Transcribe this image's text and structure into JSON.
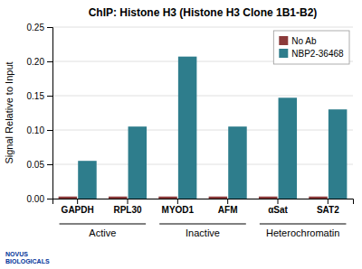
{
  "chart_data": {
    "type": "bar",
    "title": "ChIP: Histone H3 (Histone H3 Clone 1B1-B2)",
    "ylabel": "Signal Relative to Input",
    "categories": [
      "GAPDH",
      "RPL30",
      "MYOD1",
      "AFM",
      "αSat",
      "SAT2"
    ],
    "series": [
      {
        "name": "No Ab",
        "color": "#8B3A3A",
        "values": [
          0.003,
          0.003,
          0.003,
          0.003,
          0.003,
          0.003
        ]
      },
      {
        "name": "NBP2-36468",
        "color": "#2E7D8C",
        "values": [
          0.055,
          0.105,
          0.207,
          0.105,
          0.147,
          0.13
        ]
      }
    ],
    "ylim": [
      0,
      0.25
    ],
    "yticks": [
      {
        "value": 0,
        "label": "0.00"
      },
      0.05,
      {
        "value": 0.1,
        "label": "0.10"
      },
      0.15,
      {
        "value": 0.2,
        "label": "0.20"
      },
      0.25
    ],
    "grid": true,
    "legend": "upper right",
    "annotations": [
      {
        "text": "Active",
        "categories": [
          "GAPDH",
          "RPL30"
        ]
      },
      {
        "text": "Inactive",
        "categories": [
          "MYOD1",
          "AFM"
        ]
      },
      {
        "text": "Heterochromatin",
        "categories": [
          "αSat",
          "SAT2"
        ]
      },
      {
        "text": "NOVUS\nBIOLOGICALS"
      }
    ]
  }
}
